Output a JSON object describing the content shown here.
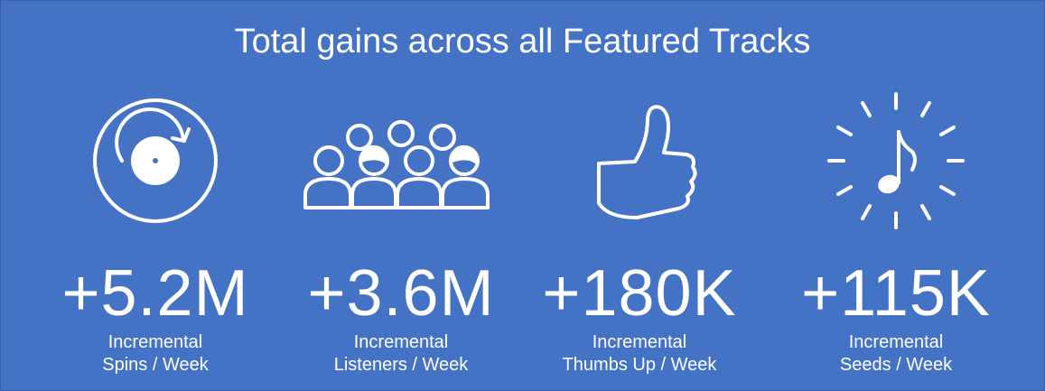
{
  "title": "Total gains across all Featured Tracks",
  "stats": [
    {
      "icon": "vinyl-record-icon",
      "value": "+5.2M",
      "label_line1": "Incremental",
      "label_line2": "Spins / Week"
    },
    {
      "icon": "crowd-icon",
      "value": "+3.6M",
      "label_line1": "Incremental",
      "label_line2": "Listeners / Week"
    },
    {
      "icon": "thumbs-up-icon",
      "value": "+180K",
      "label_line1": "Incremental",
      "label_line2": "Thumbs Up / Week"
    },
    {
      "icon": "music-note-burst-icon",
      "value": "+115K",
      "label_line1": "Incremental",
      "label_line2": "Seeds / Week"
    }
  ],
  "colors": {
    "background": "#4472c4",
    "foreground": "#ffffff"
  }
}
